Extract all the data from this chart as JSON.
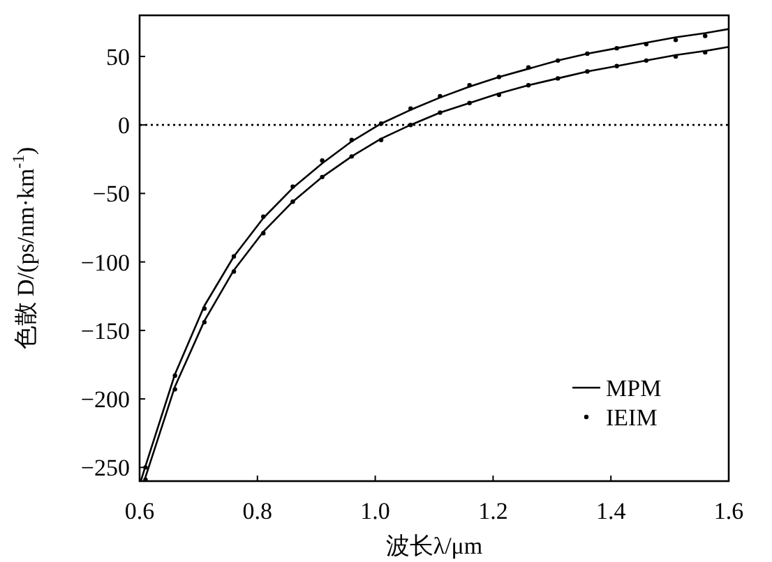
{
  "chart_data": {
    "type": "line",
    "xlabel": "波长λ/μm",
    "ylabel": "色散 D/(ps/nm·km$^{-1}$)",
    "xlim": [
      0.6,
      1.6
    ],
    "ylim": [
      -260,
      80
    ],
    "xticks": [
      {
        "value": 0.6,
        "label": "0.6"
      },
      {
        "value": 0.8,
        "label": "0.8"
      },
      {
        "value": 1.0,
        "label": "1.0"
      },
      {
        "value": 1.2,
        "label": "1.2"
      },
      {
        "value": 1.4,
        "label": "1.4"
      },
      {
        "value": 1.6,
        "label": "1.6"
      }
    ],
    "yticks": [
      {
        "value": 50,
        "label": "50"
      },
      {
        "value": 0,
        "label": "0"
      },
      {
        "value": -50,
        "label": "−50"
      },
      {
        "value": -100,
        "label": "−100"
      },
      {
        "value": -150,
        "label": "−150"
      },
      {
        "value": -200,
        "label": "−200"
      },
      {
        "value": -250,
        "label": "−250"
      }
    ],
    "grid": false,
    "legend": "bottom right",
    "ref_lines": [
      {
        "axis": "y",
        "value": 0,
        "line_style": "dotted"
      }
    ],
    "series": [
      {
        "name": "MPM",
        "type": "line",
        "color": "#000000",
        "marker": "none",
        "line_style": "solid",
        "x": [
          0.602,
          0.61,
          0.66,
          0.71,
          0.76,
          0.81,
          0.86,
          0.91,
          0.96,
          1.01,
          1.06,
          1.11,
          1.16,
          1.21,
          1.26,
          1.31,
          1.36,
          1.41,
          1.46,
          1.51,
          1.56,
          1.6
        ],
        "values": [
          -260,
          -249,
          -182,
          -132,
          -96,
          -68,
          -46,
          -28,
          -12,
          1,
          11,
          20,
          28,
          35,
          41,
          47,
          52,
          56,
          60,
          64,
          67,
          70
        ]
      },
      {
        "type": "line",
        "color": "#000000",
        "marker": "none",
        "line_style": "solid",
        "x": [
          0.608,
          0.61,
          0.66,
          0.71,
          0.76,
          0.81,
          0.86,
          0.91,
          0.96,
          1.01,
          1.06,
          1.11,
          1.16,
          1.21,
          1.26,
          1.31,
          1.36,
          1.41,
          1.46,
          1.51,
          1.56,
          1.6
        ],
        "values": [
          -260,
          -257,
          -191,
          -143,
          -106,
          -78,
          -56,
          -38,
          -23,
          -10,
          0,
          9,
          16,
          23,
          29,
          34,
          39,
          43,
          47,
          51,
          54,
          57
        ]
      },
      {
        "name": "IEIM",
        "type": "scatter",
        "color": "#000000",
        "marker": "circle",
        "x": [
          0.61,
          0.66,
          0.71,
          0.76,
          0.81,
          0.86,
          0.91,
          0.96,
          1.01,
          1.06,
          1.11,
          1.16,
          1.21,
          1.26,
          1.31,
          1.36,
          1.41,
          1.46,
          1.51,
          1.56
        ],
        "values": [
          -250,
          -183,
          -134,
          -96,
          -67,
          -45,
          -26,
          -11,
          1,
          12,
          21,
          29,
          35,
          42,
          47,
          52,
          56,
          59,
          62,
          65
        ]
      },
      {
        "type": "scatter",
        "color": "#000000",
        "marker": "circle",
        "x": [
          0.61,
          0.66,
          0.71,
          0.76,
          0.81,
          0.86,
          0.91,
          0.96,
          1.01,
          1.06,
          1.11,
          1.16,
          1.21,
          1.26,
          1.31,
          1.36,
          1.41,
          1.46,
          1.51,
          1.56
        ],
        "values": [
          -259,
          -193,
          -144,
          -107,
          -79,
          -56,
          -38,
          -23,
          -11,
          0,
          9,
          16,
          22,
          29,
          34,
          39,
          43,
          47,
          50,
          53
        ]
      }
    ]
  }
}
